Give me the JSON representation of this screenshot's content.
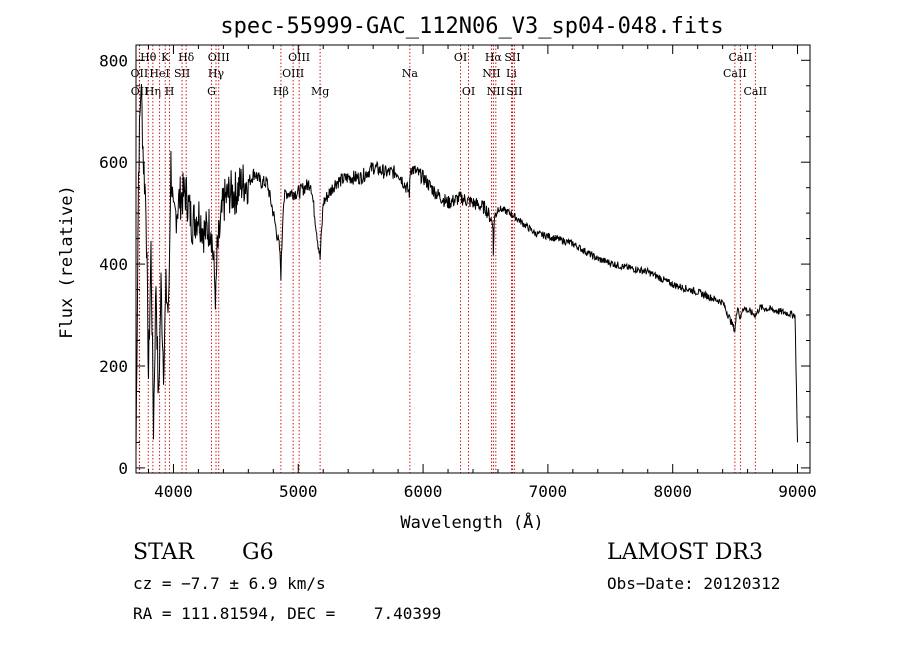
{
  "chart_data": {
    "type": "line",
    "title": "spec-55999-GAC_112N06_V3_sp04-048.fits",
    "xlabel": "Wavelength (Å)",
    "ylabel": "Flux (relative)",
    "xlim": [
      3700,
      9100
    ],
    "ylim": [
      -10,
      830
    ],
    "xticks": [
      4000,
      5000,
      6000,
      7000,
      8000,
      9000
    ],
    "yticks": [
      0,
      200,
      400,
      600,
      800
    ],
    "grid": false,
    "series": [
      {
        "name": "flux",
        "x": [
          3700,
          3720,
          3740,
          3760,
          3780,
          3800,
          3820,
          3840,
          3860,
          3880,
          3900,
          3920,
          3940,
          3960,
          3980,
          4000,
          4050,
          4100,
          4150,
          4200,
          4250,
          4300,
          4340,
          4350,
          4400,
          4450,
          4500,
          4550,
          4600,
          4650,
          4700,
          4750,
          4800,
          4850,
          4861,
          4880,
          4900,
          5000,
          5100,
          5175,
          5200,
          5300,
          5400,
          5500,
          5600,
          5700,
          5800,
          5890,
          5900,
          6000,
          6100,
          6200,
          6300,
          6400,
          6500,
          6560,
          6563,
          6570,
          6600,
          6700,
          6800,
          6900,
          7000,
          7200,
          7400,
          7600,
          7800,
          8000,
          8200,
          8400,
          8498,
          8520,
          8542,
          8560,
          8662,
          8700,
          8800,
          8900,
          8980,
          9000
        ],
        "values": [
          30,
          580,
          760,
          600,
          520,
          180,
          430,
          80,
          370,
          120,
          360,
          200,
          350,
          300,
          600,
          480,
          530,
          540,
          480,
          500,
          460,
          480,
          330,
          420,
          520,
          540,
          540,
          560,
          560,
          580,
          560,
          560,
          500,
          430,
          380,
          520,
          540,
          540,
          560,
          410,
          520,
          560,
          570,
          570,
          590,
          580,
          580,
          540,
          590,
          570,
          540,
          520,
          530,
          520,
          510,
          480,
          410,
          490,
          510,
          500,
          480,
          460,
          455,
          440,
          410,
          395,
          385,
          360,
          345,
          325,
          270,
          320,
          290,
          315,
          300,
          315,
          310,
          305,
          300,
          50
        ]
      }
    ],
    "line_labels": [
      {
        "name": "OII",
        "wavelength": 3727,
        "row": 2
      },
      {
        "name": "OII",
        "wavelength": 3729,
        "row": 3
      },
      {
        "name": "Hθ",
        "wavelength": 3798,
        "row": 1
      },
      {
        "name": "Hη",
        "wavelength": 3835,
        "row": 3
      },
      {
        "name": "HeI",
        "wavelength": 3889,
        "row": 2
      },
      {
        "name": "K",
        "wavelength": 3934,
        "row": 1
      },
      {
        "name": "H",
        "wavelength": 3969,
        "row": 3
      },
      {
        "name": "SII",
        "wavelength": 4069,
        "row": 2
      },
      {
        "name": "Hδ",
        "wavelength": 4102,
        "row": 1
      },
      {
        "name": "Hγ",
        "wavelength": 4341,
        "row": 2
      },
      {
        "name": "G",
        "wavelength": 4305,
        "row": 3
      },
      {
        "name": "OIII",
        "wavelength": 4363,
        "row": 1
      },
      {
        "name": "Hβ",
        "wavelength": 4861,
        "row": 3
      },
      {
        "name": "OIII",
        "wavelength": 4959,
        "row": 2
      },
      {
        "name": "OIII",
        "wavelength": 5007,
        "row": 1
      },
      {
        "name": "Mg",
        "wavelength": 5175,
        "row": 3
      },
      {
        "name": "Na",
        "wavelength": 5894,
        "row": 2
      },
      {
        "name": "OI",
        "wavelength": 6300,
        "row": 1
      },
      {
        "name": "OI",
        "wavelength": 6364,
        "row": 3
      },
      {
        "name": "NII",
        "wavelength": 6548,
        "row": 2
      },
      {
        "name": "Hα",
        "wavelength": 6563,
        "row": 1
      },
      {
        "name": "NII",
        "wavelength": 6583,
        "row": 3
      },
      {
        "name": "Li",
        "wavelength": 6708,
        "row": 2
      },
      {
        "name": "SII",
        "wavelength": 6716,
        "row": 1
      },
      {
        "name": "SII",
        "wavelength": 6731,
        "row": 3
      },
      {
        "name": "CaII",
        "wavelength": 8498,
        "row": 2
      },
      {
        "name": "CaII",
        "wavelength": 8542,
        "row": 1
      },
      {
        "name": "CaII",
        "wavelength": 8662,
        "row": 3
      }
    ]
  },
  "info": {
    "object_class": "STAR",
    "subclass": "G6",
    "survey": "LAMOST DR3",
    "redshift": "cz = −7.7 ± 6.9 km/s",
    "obs_date": "Obs−Date: 20120312",
    "coords": "RA = 111.81594, DEC =    7.40399"
  },
  "colors": {
    "spectrum": "#000000",
    "line_markers": "#cc0000",
    "axes": "#000000"
  }
}
